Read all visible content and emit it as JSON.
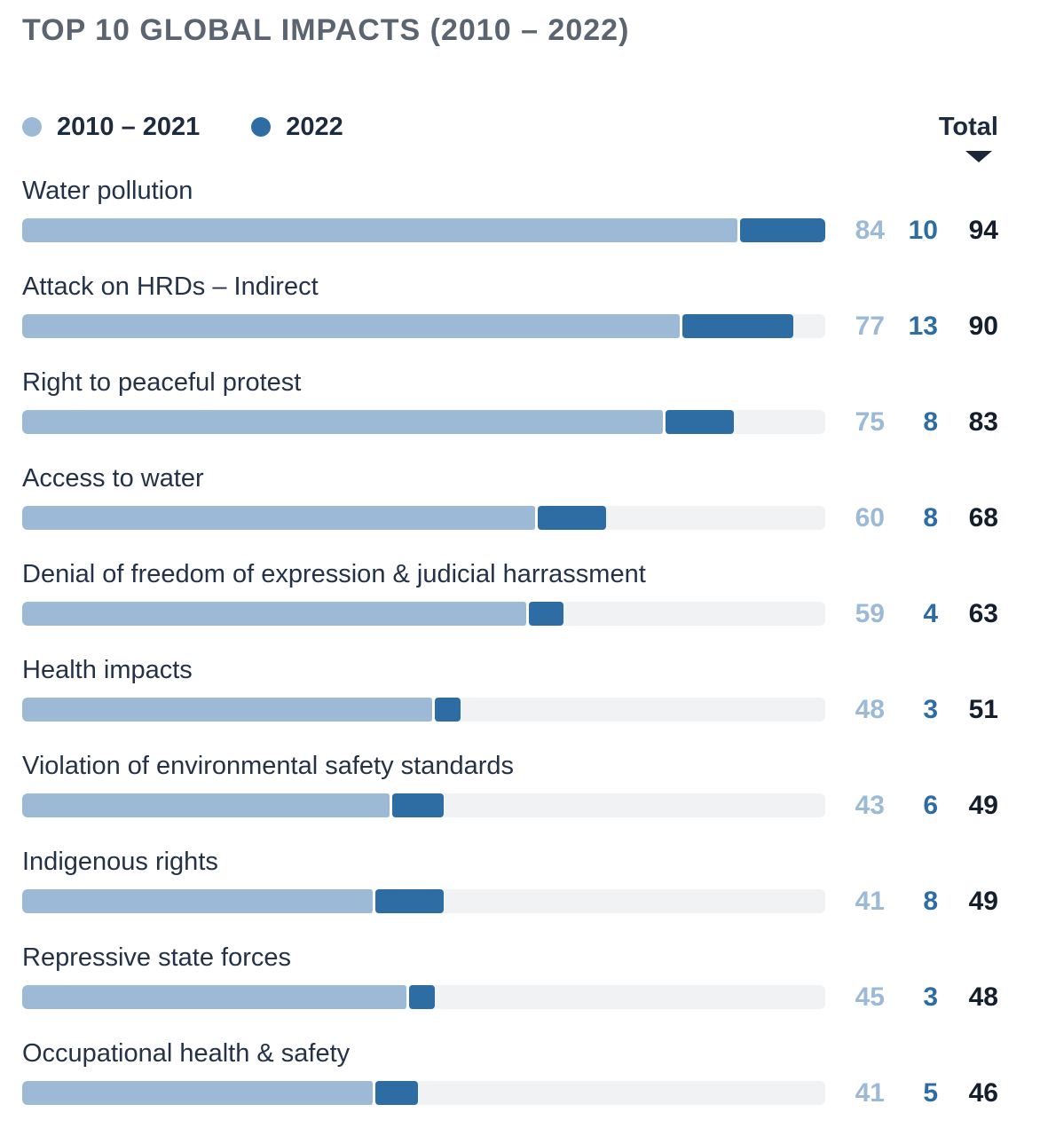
{
  "title": "TOP 10 GLOBAL IMPACTS (2010 – 2022)",
  "legend": {
    "series1_label": "2010 – 2021",
    "series2_label": "2022",
    "total_label": "Total",
    "sort_icon": "triangle-down"
  },
  "colors": {
    "series1": "#9cbad6",
    "series2": "#2e6ca4",
    "track": "#f0f2f4",
    "title_text": "#5a6571",
    "label_text": "#243248",
    "total_value_text": "#141f2e",
    "background": "#ffffff"
  },
  "chart_data": {
    "type": "bar",
    "orientation": "horizontal",
    "stacked": true,
    "sorted_by": "Total descending",
    "x_max": 94,
    "grid": false,
    "legend_position": "top-left",
    "value_labels_position": "right",
    "categories": [
      "Water pollution",
      "Attack on HRDs – Indirect",
      "Right to peaceful protest",
      "Access to water",
      "Denial of freedom of expression & judicial harrassment",
      "Health impacts",
      "Violation of environmental safety standards",
      "Indigenous rights",
      "Repressive state forces",
      "Occupational health & safety"
    ],
    "series": [
      {
        "name": "2010 – 2021",
        "color": "#9cbad6",
        "values": [
          84,
          77,
          75,
          60,
          59,
          48,
          43,
          41,
          45,
          41
        ]
      },
      {
        "name": "2022",
        "color": "#2e6ca4",
        "values": [
          10,
          13,
          8,
          8,
          4,
          3,
          6,
          8,
          3,
          5
        ]
      }
    ],
    "totals": [
      94,
      90,
      83,
      68,
      63,
      51,
      49,
      49,
      48,
      46
    ]
  }
}
